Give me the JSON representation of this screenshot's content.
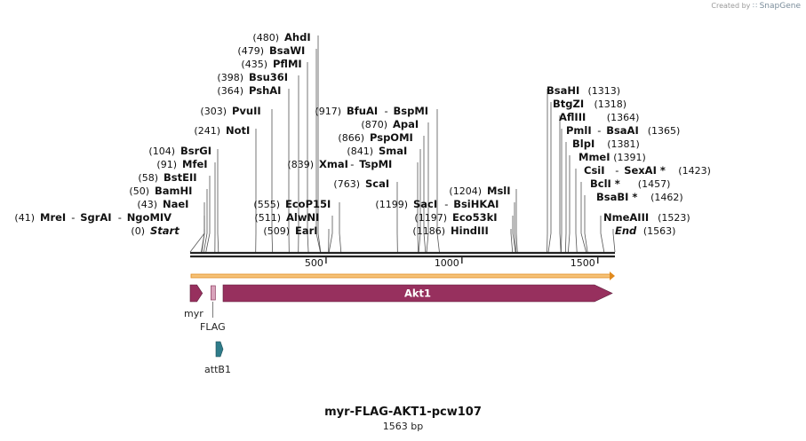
{
  "watermark": {
    "prefix": "Created by",
    "brand": "SnapGene"
  },
  "title": "myr-FLAG-AKT1-pcw107",
  "length_label": "1563 bp",
  "sequence_length": 1563,
  "ticks": [
    {
      "pos": 500,
      "label": "500"
    },
    {
      "pos": 1000,
      "label": "1000"
    },
    {
      "pos": 1500,
      "label": "1500"
    }
  ],
  "sites": [
    {
      "pos": 0,
      "text": "(0)",
      "names": [
        "Start"
      ],
      "italic": true
    },
    {
      "pos": 41,
      "text": "(41)",
      "names": [
        "MreI",
        "SgrAI",
        "NgoMIV"
      ]
    },
    {
      "pos": 43,
      "text": "(43)",
      "names": [
        "NaeI"
      ]
    },
    {
      "pos": 50,
      "text": "(50)",
      "names": [
        "BamHI"
      ]
    },
    {
      "pos": 58,
      "text": "(58)",
      "names": [
        "BstEII"
      ]
    },
    {
      "pos": 91,
      "text": "(91)",
      "names": [
        "MfeI"
      ]
    },
    {
      "pos": 104,
      "text": "(104)",
      "names": [
        "BsrGI"
      ]
    },
    {
      "pos": 241,
      "text": "(241)",
      "names": [
        "NotI"
      ]
    },
    {
      "pos": 303,
      "text": "(303)",
      "names": [
        "PvuII"
      ]
    },
    {
      "pos": 364,
      "text": "(364)",
      "names": [
        "PshAI"
      ]
    },
    {
      "pos": 398,
      "text": "(398)",
      "names": [
        "Bsu36I"
      ]
    },
    {
      "pos": 435,
      "text": "(435)",
      "names": [
        "PflMI"
      ]
    },
    {
      "pos": 479,
      "text": "(479)",
      "names": [
        "BsaWI"
      ]
    },
    {
      "pos": 480,
      "text": "(480)",
      "names": [
        "AhdI"
      ]
    },
    {
      "pos": 509,
      "text": "(509)",
      "names": [
        "EarI"
      ]
    },
    {
      "pos": 511,
      "text": "(511)",
      "names": [
        "AlwNI"
      ]
    },
    {
      "pos": 555,
      "text": "(555)",
      "names": [
        "EcoP15I"
      ]
    },
    {
      "pos": 763,
      "text": "(763)",
      "names": [
        "ScaI"
      ]
    },
    {
      "pos": 839,
      "text": "(839)",
      "names": [
        "XmaI",
        "TspMI"
      ]
    },
    {
      "pos": 841,
      "text": "(841)",
      "names": [
        "SmaI"
      ]
    },
    {
      "pos": 866,
      "text": "(866)",
      "names": [
        "PspOMI"
      ]
    },
    {
      "pos": 870,
      "text": "(870)",
      "names": [
        "ApaI"
      ]
    },
    {
      "pos": 917,
      "text": "(917)",
      "names": [
        "BfuAI",
        "BspMI"
      ]
    },
    {
      "pos": 1186,
      "text": "(1186)",
      "names": [
        "HindIII"
      ]
    },
    {
      "pos": 1197,
      "text": "(1197)",
      "names": [
        "Eco53kI"
      ]
    },
    {
      "pos": 1199,
      "text": "(1199)",
      "names": [
        "SacI",
        "BsiHKAI"
      ]
    },
    {
      "pos": 1204,
      "text": "(1204)",
      "names": [
        "MslI"
      ]
    },
    {
      "pos": 1313,
      "text": "(1313)",
      "names": [
        "BsaHI"
      ]
    },
    {
      "pos": 1318,
      "text": "(1318)",
      "names": [
        "BtgZI"
      ]
    },
    {
      "pos": 1364,
      "text": "(1364)",
      "names": [
        "AflIII"
      ]
    },
    {
      "pos": 1365,
      "text": "(1365)",
      "names": [
        "PmlI",
        "BsaAI"
      ]
    },
    {
      "pos": 1381,
      "text": "(1381)",
      "names": [
        "BlpI"
      ]
    },
    {
      "pos": 1391,
      "text": "(1391)",
      "names": [
        "MmeI"
      ]
    },
    {
      "pos": 1423,
      "text": "(1423)",
      "names": [
        "CsiI",
        "SexAI *"
      ]
    },
    {
      "pos": 1457,
      "text": "(1457)",
      "names": [
        "BclI *"
      ]
    },
    {
      "pos": 1462,
      "text": "(1462)",
      "names": [
        "BsaBI *"
      ]
    },
    {
      "pos": 1523,
      "text": "(1523)",
      "names": [
        "NmeAIII"
      ]
    },
    {
      "pos": 1563,
      "text": "(1563)",
      "names": [
        "End"
      ],
      "italic": true
    }
  ],
  "features": [
    {
      "name": "myr",
      "start": 1,
      "end": 45,
      "color": "#97305e"
    },
    {
      "name": "FLAG",
      "start": 61,
      "end": 84,
      "color": "#d9a3bb"
    },
    {
      "name": "Akt1",
      "start": 118,
      "end": 1563,
      "color": "#97305e"
    },
    {
      "name": "attB1",
      "start": 94,
      "end": 115,
      "color": "#2f7c8a"
    }
  ],
  "colors": {
    "orf_fill": "#f6c277",
    "orf_line": "#e08a1e",
    "backbone": "#222222"
  }
}
